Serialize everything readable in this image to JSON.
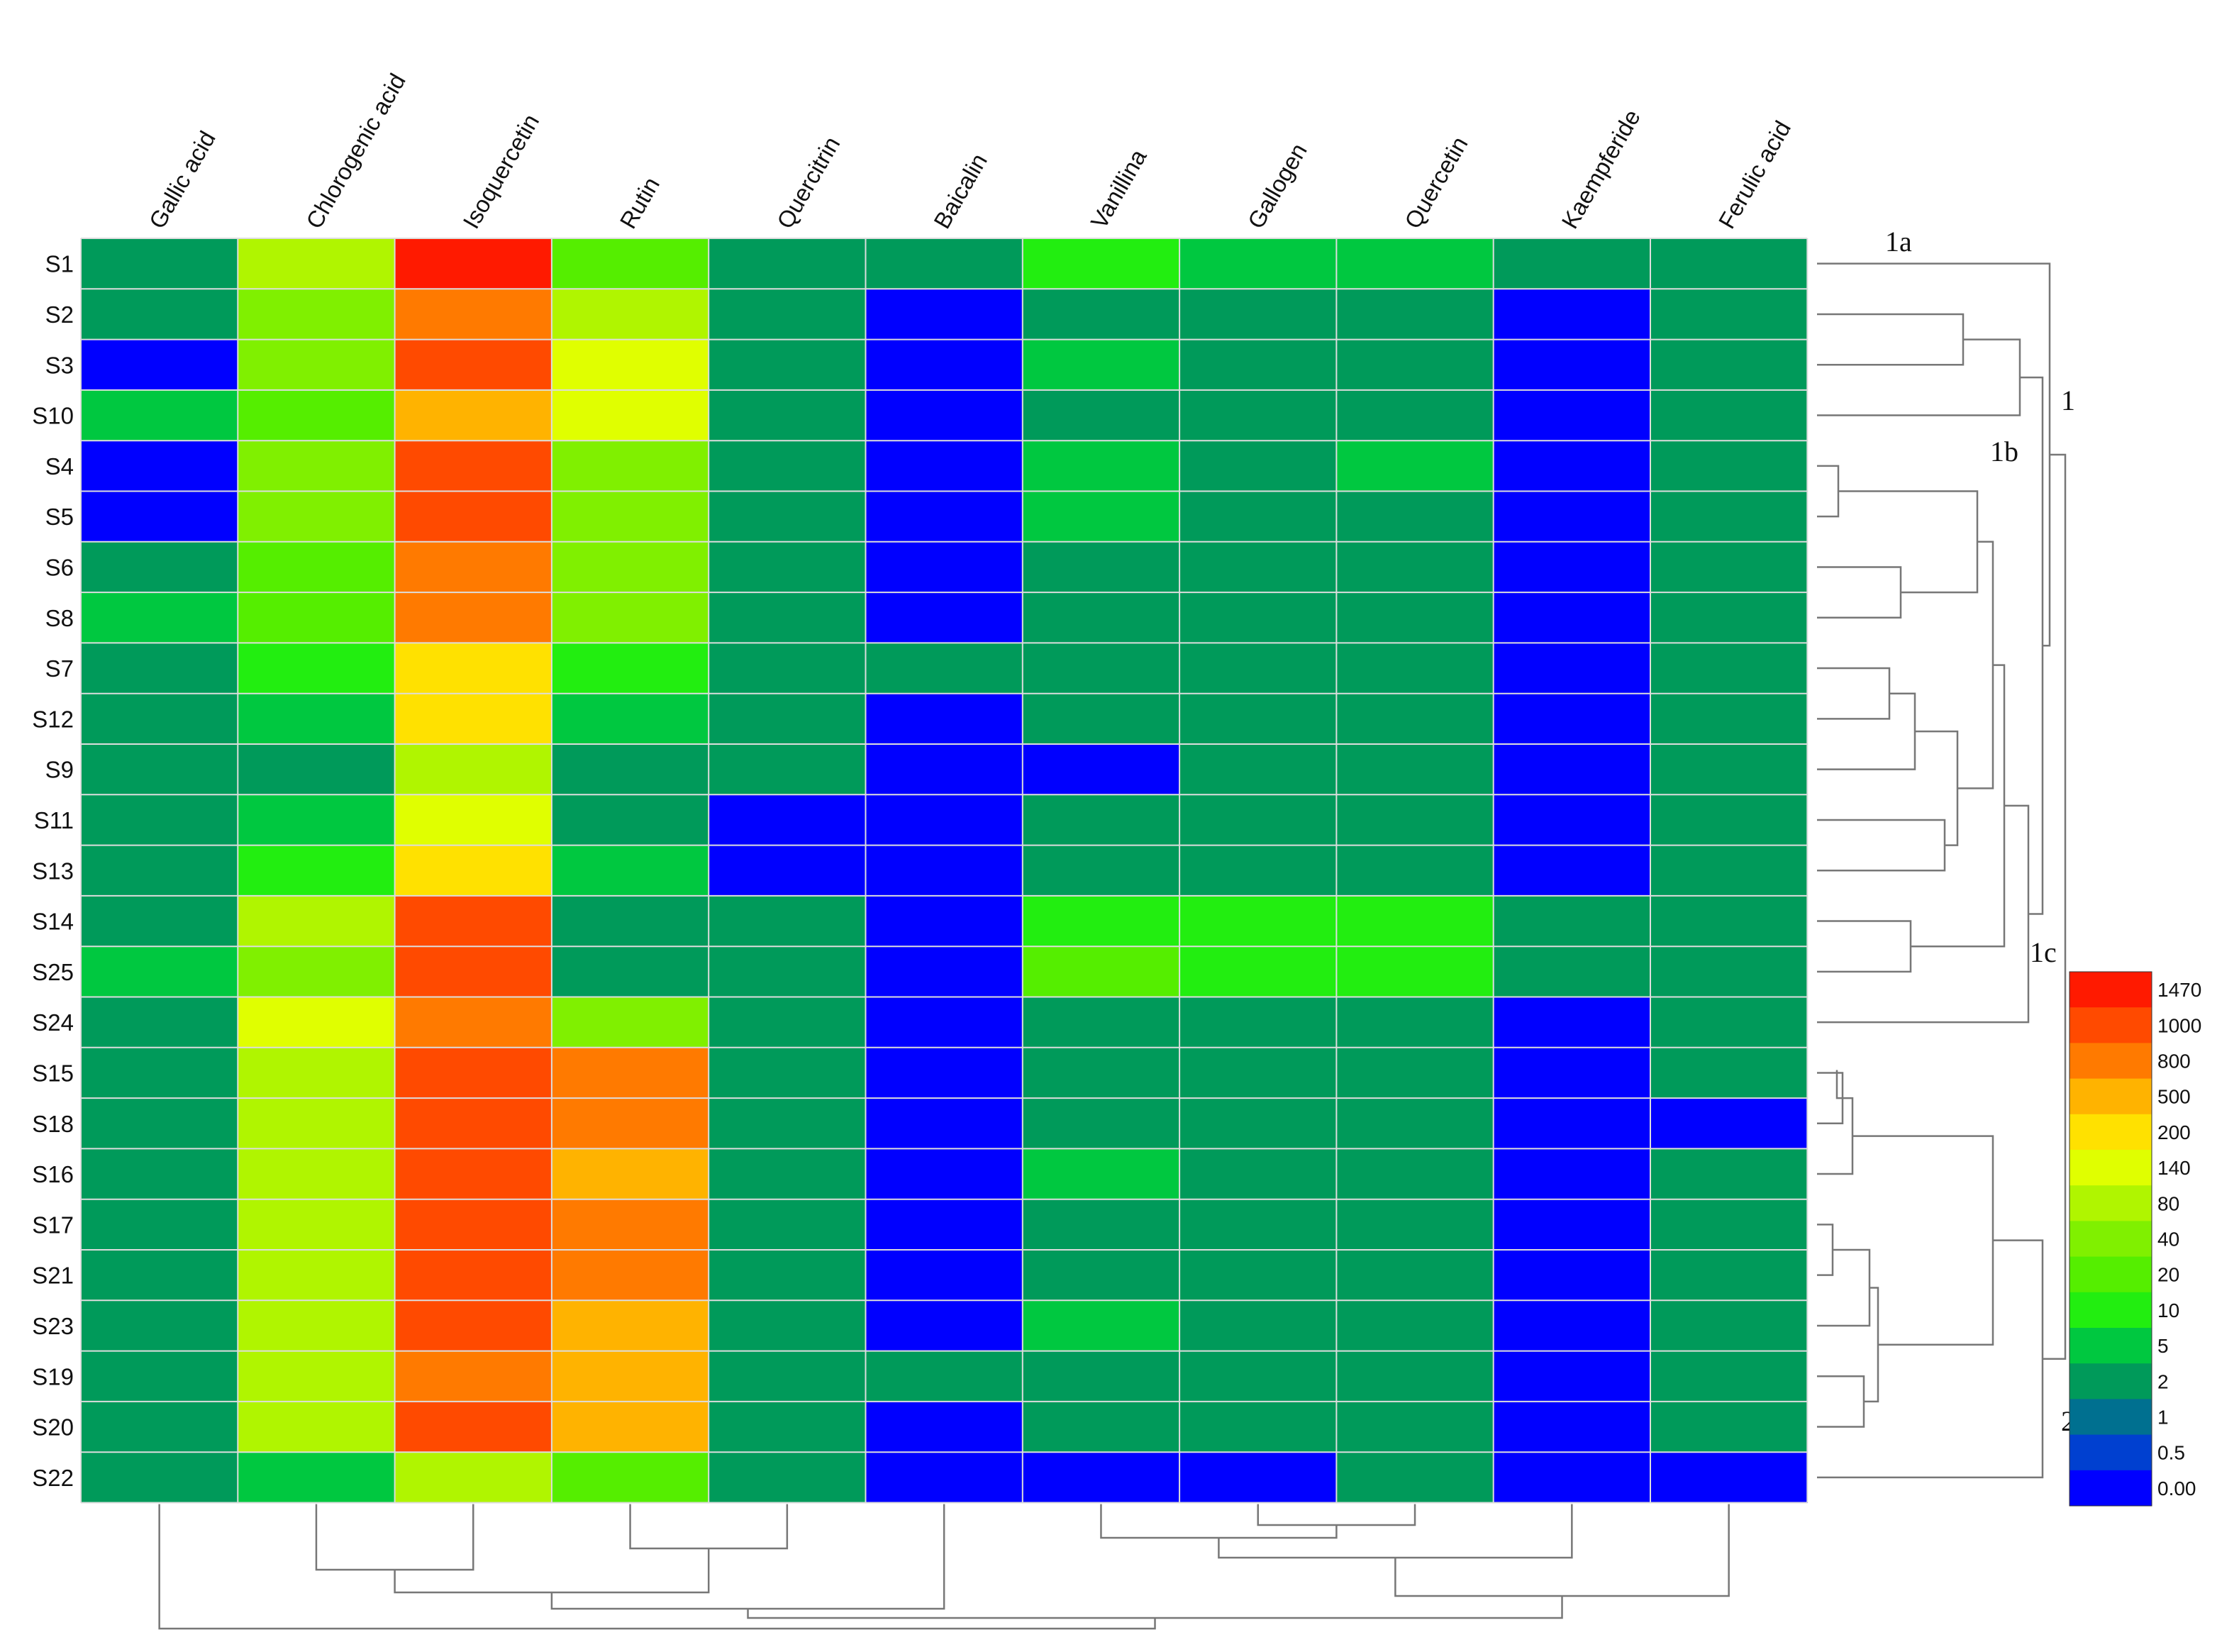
{
  "chart_data": {
    "type": "heatmap",
    "columns": [
      "Gallic acid",
      "Chlorogenic acid",
      "Isoquercetin",
      "Rutin",
      "Quercitrin",
      "Baicalin",
      "Vanillina",
      "Gallogen",
      "Quercetin",
      "Kaempferide",
      "Ferulic acid"
    ],
    "rows": [
      "S1",
      "S2",
      "S3",
      "S10",
      "S4",
      "S5",
      "S6",
      "S8",
      "S7",
      "S12",
      "S9",
      "S11",
      "S13",
      "S14",
      "S25",
      "S24",
      "S15",
      "S18",
      "S16",
      "S17",
      "S21",
      "S23",
      "S19",
      "S20",
      "S22"
    ],
    "values": [
      [
        3,
        100,
        1470,
        20,
        3,
        3,
        10,
        5,
        5,
        3,
        3
      ],
      [
        3,
        50,
        800,
        90,
        3,
        0,
        3,
        3,
        3,
        0,
        3
      ],
      [
        0,
        50,
        1000,
        170,
        3,
        0,
        5,
        3,
        3,
        0,
        3
      ],
      [
        5,
        25,
        500,
        160,
        3,
        0,
        3,
        3,
        3,
        0,
        3
      ],
      [
        0,
        50,
        1000,
        50,
        3,
        0,
        5,
        3,
        5,
        0,
        3
      ],
      [
        0,
        50,
        1000,
        50,
        3,
        0,
        5,
        3,
        3,
        0,
        3
      ],
      [
        3,
        25,
        800,
        50,
        3,
        0,
        3,
        3,
        3,
        0,
        3
      ],
      [
        5,
        25,
        800,
        50,
        3,
        0,
        3,
        3,
        3,
        0,
        3
      ],
      [
        3,
        10,
        200,
        10,
        3,
        3,
        3,
        3,
        3,
        0,
        3
      ],
      [
        3,
        5,
        200,
        5,
        3,
        0,
        3,
        3,
        3,
        0,
        3
      ],
      [
        3,
        3,
        100,
        3,
        3,
        0,
        0,
        3,
        3,
        0,
        3
      ],
      [
        3,
        5,
        150,
        3,
        0,
        0,
        3,
        3,
        3,
        0,
        3
      ],
      [
        3,
        10,
        200,
        5,
        0,
        0,
        3,
        3,
        3,
        0,
        3
      ],
      [
        3,
        90,
        1000,
        3,
        3,
        0,
        10,
        10,
        10,
        3,
        3
      ],
      [
        5,
        50,
        1000,
        3,
        3,
        0,
        30,
        10,
        10,
        3,
        3
      ],
      [
        3,
        150,
        800,
        50,
        3,
        0,
        3,
        3,
        3,
        0,
        3
      ],
      [
        3,
        100,
        1000,
        800,
        3,
        0,
        3,
        3,
        3,
        0,
        3
      ],
      [
        3,
        100,
        1000,
        800,
        3,
        0,
        3,
        3,
        3,
        0,
        0
      ],
      [
        3,
        100,
        1000,
        500,
        3,
        0,
        5,
        3,
        3,
        0,
        3
      ],
      [
        3,
        100,
        1000,
        800,
        3,
        0,
        3,
        3,
        3,
        0,
        3
      ],
      [
        3,
        100,
        1000,
        800,
        3,
        0,
        3,
        3,
        3,
        0,
        3
      ],
      [
        3,
        100,
        1000,
        500,
        3,
        0,
        5,
        3,
        3,
        0,
        3
      ],
      [
        3,
        100,
        800,
        500,
        3,
        3,
        3,
        3,
        3,
        0,
        3
      ],
      [
        3,
        100,
        1000,
        500,
        3,
        0,
        3,
        3,
        3,
        0,
        3
      ],
      [
        3,
        5,
        100,
        20,
        3,
        0,
        0,
        0,
        3,
        0,
        0
      ]
    ],
    "legend": {
      "labels": [
        "1470",
        "1000",
        "800",
        "500",
        "200",
        "140",
        "80",
        "40",
        "20",
        "10",
        "5",
        "2",
        "1",
        "0.5",
        "0.00"
      ],
      "thresholds": [
        1470,
        1000,
        800,
        500,
        200,
        140,
        80,
        40,
        20,
        10,
        5,
        2,
        1,
        0.5,
        0
      ],
      "colors": [
        "#ff1a00",
        "#ff4a00",
        "#ff7a00",
        "#ffb300",
        "#ffe100",
        "#e0ff00",
        "#b0f500",
        "#80f000",
        "#55ee00",
        "#22ee10",
        "#00c840",
        "#009a5a",
        "#007090",
        "#0040d0",
        "#0000ff"
      ]
    },
    "row_clusters": [
      "1a",
      "1",
      "1b",
      "1c",
      "2"
    ]
  }
}
